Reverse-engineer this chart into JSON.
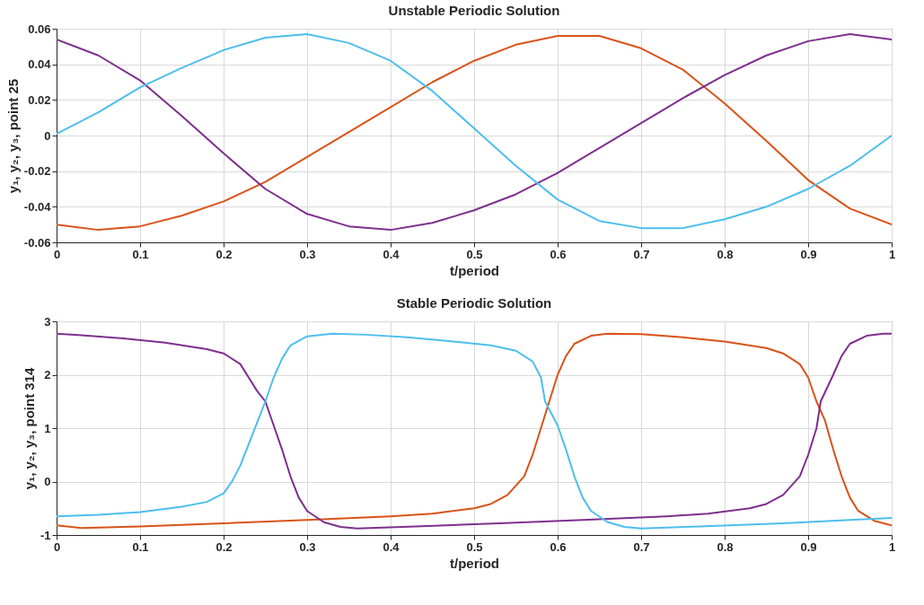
{
  "chart_data": [
    {
      "type": "line",
      "title": "Unstable Periodic Solution",
      "xlabel": "t/period",
      "ylabel": "y₁, y₂, y₃, point 25",
      "xlim": [
        0,
        1
      ],
      "xticks": [
        0,
        0.1,
        0.2,
        0.3,
        0.4,
        0.5,
        0.6,
        0.7,
        0.8,
        0.9,
        1
      ],
      "ylim": [
        -0.06,
        0.06
      ],
      "yticks": [
        -0.06,
        -0.04,
        -0.02,
        0,
        0.02,
        0.04,
        0.06
      ],
      "grid": true,
      "x": [
        0,
        0.05,
        0.1,
        0.15,
        0.2,
        0.25,
        0.3,
        0.35,
        0.4,
        0.45,
        0.5,
        0.55,
        0.6,
        0.65,
        0.7,
        0.75,
        0.8,
        0.85,
        0.9,
        0.95,
        1
      ],
      "series": [
        {
          "color": "#d95319",
          "values": [
            -0.05,
            -0.053,
            -0.051,
            -0.045,
            -0.037,
            -0.026,
            -0.012,
            0.002,
            0.016,
            0.03,
            0.042,
            0.051,
            0.056,
            0.056,
            0.049,
            0.037,
            0.018,
            -0.003,
            -0.025,
            -0.041,
            -0.05
          ]
        },
        {
          "color": "#7e2f8e",
          "values": [
            0.054,
            0.045,
            0.031,
            0.011,
            -0.01,
            -0.03,
            -0.044,
            -0.051,
            -0.053,
            -0.049,
            -0.042,
            -0.033,
            -0.021,
            -0.007,
            0.007,
            0.021,
            0.034,
            0.045,
            0.053,
            0.057,
            0.054
          ]
        },
        {
          "color": "#4dbeee",
          "values": [
            0.001,
            0.013,
            0.027,
            0.038,
            0.048,
            0.055,
            0.057,
            0.052,
            0.042,
            0.025,
            0.004,
            -0.017,
            -0.036,
            -0.048,
            -0.052,
            -0.052,
            -0.047,
            -0.04,
            -0.03,
            -0.017,
            0.0
          ]
        }
      ]
    },
    {
      "type": "line",
      "title": "Stable Periodic Solution",
      "xlabel": "t/period",
      "ylabel": "y₁, y₂, y₃, point 314",
      "xlim": [
        0,
        1
      ],
      "xticks": [
        0,
        0.1,
        0.2,
        0.3,
        0.4,
        0.5,
        0.6,
        0.7,
        0.8,
        0.9,
        1
      ],
      "ylim": [
        -1,
        3
      ],
      "yticks": [
        -1,
        0,
        1,
        2,
        3
      ],
      "grid": true,
      "series": [
        {
          "color": "#d95319",
          "x": [
            0,
            0.03,
            0.1,
            0.2,
            0.3,
            0.4,
            0.45,
            0.5,
            0.52,
            0.54,
            0.56,
            0.57,
            0.58,
            0.59,
            0.6,
            0.61,
            0.62,
            0.64,
            0.66,
            0.7,
            0.75,
            0.8,
            0.85,
            0.87,
            0.89,
            0.9,
            0.91,
            0.92,
            0.93,
            0.94,
            0.95,
            0.96,
            0.98,
            1
          ],
          "values": [
            -0.82,
            -0.87,
            -0.84,
            -0.78,
            -0.72,
            -0.65,
            -0.6,
            -0.5,
            -0.42,
            -0.25,
            0.1,
            0.5,
            1.0,
            1.5,
            2.0,
            2.35,
            2.58,
            2.73,
            2.77,
            2.76,
            2.7,
            2.62,
            2.5,
            2.4,
            2.2,
            1.95,
            1.5,
            1.15,
            0.6,
            0.1,
            -0.3,
            -0.55,
            -0.74,
            -0.82
          ]
        },
        {
          "color": "#7e2f8e",
          "x": [
            0,
            0.03,
            0.08,
            0.13,
            0.18,
            0.2,
            0.22,
            0.23,
            0.24,
            0.25,
            0.26,
            0.27,
            0.28,
            0.29,
            0.3,
            0.32,
            0.34,
            0.36,
            0.43,
            0.53,
            0.63,
            0.73,
            0.78,
            0.83,
            0.85,
            0.87,
            0.89,
            0.9,
            0.91,
            0.915,
            0.93,
            0.94,
            0.95,
            0.97,
            0.99,
            1
          ],
          "values": [
            2.77,
            2.74,
            2.68,
            2.6,
            2.48,
            2.4,
            2.2,
            1.95,
            1.7,
            1.5,
            1.05,
            0.6,
            0.1,
            -0.3,
            -0.55,
            -0.76,
            -0.85,
            -0.88,
            -0.84,
            -0.78,
            -0.72,
            -0.65,
            -0.6,
            -0.5,
            -0.42,
            -0.25,
            0.1,
            0.5,
            1.0,
            1.5,
            2.0,
            2.35,
            2.58,
            2.73,
            2.77,
            2.77
          ]
        },
        {
          "color": "#4dbeee",
          "x": [
            0,
            0.05,
            0.1,
            0.15,
            0.18,
            0.2,
            0.21,
            0.22,
            0.23,
            0.24,
            0.25,
            0.26,
            0.27,
            0.28,
            0.3,
            0.33,
            0.37,
            0.42,
            0.47,
            0.52,
            0.55,
            0.57,
            0.58,
            0.585,
            0.6,
            0.61,
            0.62,
            0.63,
            0.64,
            0.66,
            0.68,
            0.7,
            0.77,
            0.87,
            0.95,
            1
          ],
          "values": [
            -0.65,
            -0.62,
            -0.57,
            -0.47,
            -0.38,
            -0.22,
            0.0,
            0.3,
            0.7,
            1.1,
            1.5,
            1.95,
            2.3,
            2.55,
            2.72,
            2.77,
            2.75,
            2.7,
            2.63,
            2.55,
            2.45,
            2.25,
            1.95,
            1.5,
            1.05,
            0.6,
            0.1,
            -0.3,
            -0.55,
            -0.76,
            -0.85,
            -0.88,
            -0.84,
            -0.78,
            -0.72,
            -0.68
          ]
        }
      ]
    }
  ]
}
